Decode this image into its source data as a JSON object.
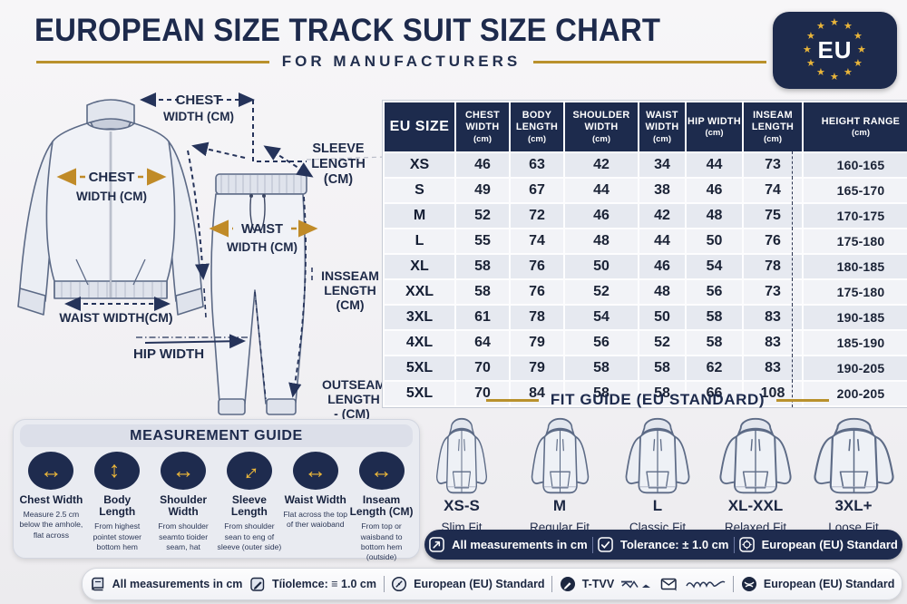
{
  "colors": {
    "navy": "#1d2b4d",
    "gold": "#c08b28",
    "star_gold": "#e9b53a"
  },
  "header": {
    "title": "EUROPEAN SIZE TRACK SUIT SIZE CHART",
    "subtitle": "FOR MANUFACTURERS",
    "badge_text": "EU"
  },
  "diagram": {
    "annotations": {
      "chest_top": [
        "CHEST",
        "WIDTH (CM)"
      ],
      "sleeve_length": [
        "SLEEVE",
        "LENGTH",
        "(CM)"
      ],
      "chest_on_jacket": [
        "CHEST",
        "WIDTH (CM)"
      ],
      "waist_on_pants": [
        "WAIST",
        "WIDTH (CM)"
      ],
      "waist_jacket": "WAIST WIDTH(CM)",
      "hip_width": "HIP WIDTH",
      "inseam": [
        "INSSEAM",
        "LENGTH",
        "(CM)"
      ],
      "outseam": [
        "OUTSEAM",
        "LENGTH",
        "- (CM)"
      ]
    }
  },
  "size_chart": {
    "columns": [
      {
        "label": "EU SIZE",
        "unit": ""
      },
      {
        "label": "CHEST WIDTH",
        "unit": "(cm)"
      },
      {
        "label": "BODY LENGTH",
        "unit": "(cm)"
      },
      {
        "label": "SHOULDER WIDTH",
        "unit": "(cm)"
      },
      {
        "label": "WAIST WIDTH",
        "unit": "(cm)"
      },
      {
        "label": "HIP WIDTH",
        "unit": "(cm)"
      },
      {
        "label": "INSEAM LENGTH",
        "unit": "(cm)"
      },
      {
        "label": "HEIGHT RANGE",
        "unit": "(cm)"
      }
    ],
    "rows": [
      {
        "size": "XS",
        "values": [
          "46",
          "63",
          "42",
          "34",
          "44",
          "73",
          "160-165"
        ]
      },
      {
        "size": "S",
        "values": [
          "49",
          "67",
          "44",
          "38",
          "46",
          "74",
          "165-170"
        ]
      },
      {
        "size": "M",
        "values": [
          "52",
          "72",
          "46",
          "42",
          "48",
          "75",
          "170-175"
        ]
      },
      {
        "size": "L",
        "values": [
          "55",
          "74",
          "48",
          "44",
          "50",
          "76",
          "175-180"
        ]
      },
      {
        "size": "XL",
        "values": [
          "58",
          "76",
          "50",
          "46",
          "54",
          "78",
          "180-185"
        ]
      },
      {
        "size": "XXL",
        "values": [
          "58",
          "76",
          "52",
          "48",
          "56",
          "73",
          "175-180"
        ]
      },
      {
        "size": "3XL",
        "values": [
          "61",
          "78",
          "54",
          "50",
          "58",
          "83",
          "190-185"
        ]
      },
      {
        "size": "4XL",
        "values": [
          "64",
          "79",
          "56",
          "52",
          "58",
          "83",
          "185-190"
        ]
      },
      {
        "size": "5XL",
        "values": [
          "70",
          "79",
          "58",
          "58",
          "62",
          "83",
          "190-205"
        ]
      },
      {
        "size": "5XL",
        "values": [
          "70",
          "84",
          "58",
          "58",
          "66",
          "108",
          "200-205"
        ]
      }
    ]
  },
  "measurement_guide": {
    "title": "MEASUREMENT GUIDE",
    "items": [
      {
        "icon": "h-arrow-icon",
        "label": "Chest Width",
        "desc": "Measure 2.5 cm below the amhole, flat across"
      },
      {
        "icon": "v-arrow-icon",
        "label": "Body Length",
        "desc": "From highest pointet stower bottom hem"
      },
      {
        "icon": "h-arrow-icon",
        "label": "Shoulder Width",
        "desc": "From shoulder seamto tioider seam, hat"
      },
      {
        "icon": "diag-arrow-icon",
        "label": "Sleeve Length",
        "desc": "From shoulder sean to eng of sleeve (outer side)"
      },
      {
        "icon": "h-arrow-icon",
        "label": "Waist Width",
        "desc": "Flat across the top of ther waioband"
      },
      {
        "icon": "h-arrow-icon",
        "label": "Inseam Length (CM)",
        "desc": "From top or waisband to bottom hem (outside)"
      }
    ]
  },
  "fit_guide": {
    "title": "FIT GUIDE  (EU STANDARD)",
    "fits": [
      {
        "size": "XS-S",
        "fit": "Slim Fit"
      },
      {
        "size": "M",
        "fit": "Regular Fit"
      },
      {
        "size": "L",
        "fit": "Classic Fit"
      },
      {
        "size": "XL-XXL",
        "fit": "Relaxed Fit"
      },
      {
        "size": "3XL+",
        "fit": "Loose Fit"
      }
    ]
  },
  "info_bar": {
    "items": [
      {
        "icon": "measure-arrow-icon",
        "label": "All measurements in cm"
      },
      {
        "icon": "tolerance-check-icon",
        "label": "Tolerance: ± 1.0 cm"
      },
      {
        "icon": "eu-standard-icon",
        "label": "European (EU) Standard"
      }
    ]
  },
  "footer_bar": {
    "items": [
      {
        "icon": "book-icon",
        "label": "All measurements in cm"
      },
      {
        "icon": "pencil-square-icon",
        "label": "Tíiolemce: ≡ 1.0 cm"
      },
      {
        "type": "divider"
      },
      {
        "icon": "compass-icon",
        "label": "European (EU) Standard"
      },
      {
        "type": "divider"
      },
      {
        "icon": "pen-circle-icon",
        "label": "T-TVV",
        "scribble": "mountain"
      },
      {
        "icon": "envelope-icon",
        "label": "",
        "scribble": "signature"
      },
      {
        "type": "divider"
      },
      {
        "icon": "globe-icon",
        "label": "European (EU) Standard"
      }
    ]
  }
}
